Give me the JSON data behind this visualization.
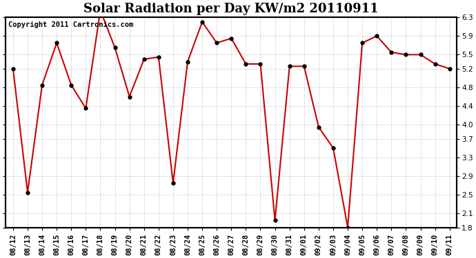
{
  "title": "Solar Radiation per Day KW/m2 20110911",
  "copyright_text": "Copyright 2011 Cartronics.com",
  "dates": [
    "08/12",
    "08/13",
    "08/14",
    "08/15",
    "08/16",
    "08/17",
    "08/18",
    "08/19",
    "08/20",
    "08/21",
    "08/22",
    "08/23",
    "08/24",
    "08/25",
    "08/26",
    "08/27",
    "08/28",
    "08/29",
    "08/30",
    "08/31",
    "09/01",
    "09/02",
    "09/03",
    "09/04",
    "09/05",
    "09/06",
    "09/07",
    "09/08",
    "09/09",
    "09/10",
    "09/11"
  ],
  "values": [
    5.2,
    2.55,
    4.85,
    5.75,
    4.85,
    4.35,
    6.45,
    5.65,
    4.6,
    5.4,
    5.45,
    2.75,
    5.35,
    6.2,
    5.75,
    5.85,
    5.3,
    5.3,
    1.95,
    5.25,
    5.25,
    3.95,
    3.5,
    1.8,
    5.75,
    5.9,
    5.55,
    5.5,
    5.5,
    5.3,
    5.2
  ],
  "line_color": "#cc0000",
  "marker_color": "#000000",
  "bg_color": "#ffffff",
  "plot_bg_color": "#ffffff",
  "grid_color": "#bbbbbb",
  "ylim": [
    1.8,
    6.3
  ],
  "yticks": [
    1.8,
    2.1,
    2.5,
    2.9,
    3.3,
    3.7,
    4.0,
    4.4,
    4.8,
    5.2,
    5.5,
    5.9,
    6.3
  ],
  "title_fontsize": 13,
  "tick_fontsize": 7.5,
  "copyright_fontsize": 7.5
}
